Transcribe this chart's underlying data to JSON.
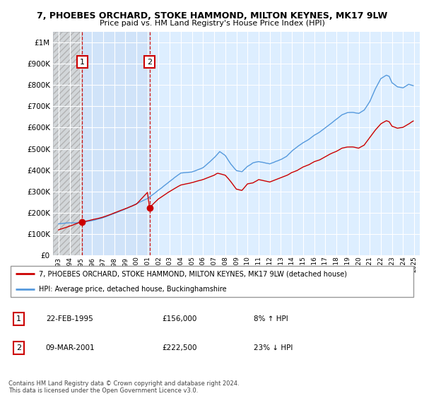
{
  "title": "7, PHOEBES ORCHARD, STOKE HAMMOND, MILTON KEYNES, MK17 9LW",
  "subtitle": "Price paid vs. HM Land Registry's House Price Index (HPI)",
  "legend_line1": "7, PHOEBES ORCHARD, STOKE HAMMOND, MILTON KEYNES, MK17 9LW (detached house)",
  "legend_line2": "HPI: Average price, detached house, Buckinghamshire",
  "annotation1_label": "1",
  "annotation1_date": "22-FEB-1995",
  "annotation1_price": "£156,000",
  "annotation1_hpi": "8% ↑ HPI",
  "annotation2_label": "2",
  "annotation2_date": "09-MAR-2001",
  "annotation2_price": "£222,500",
  "annotation2_hpi": "23% ↓ HPI",
  "copyright": "Contains HM Land Registry data © Crown copyright and database right 2024.\nThis data is licensed under the Open Government Licence v3.0.",
  "hpi_color": "#5599dd",
  "price_color": "#cc0000",
  "annotation_color": "#cc0000",
  "background_color": "#ddeeff",
  "hatch_bg": "#c8c8c8",
  "sale_shade_color": "#c8ddf5",
  "grid_color": "#ffffff",
  "ylim": [
    0,
    1050000
  ],
  "yticks": [
    0,
    100000,
    200000,
    300000,
    400000,
    500000,
    600000,
    700000,
    800000,
    900000,
    1000000
  ],
  "sale1_x": 1995.12,
  "sale1_y": 156000,
  "sale2_x": 2001.18,
  "sale2_y": 222500,
  "xlim_left": 1992.5,
  "xlim_right": 2025.5,
  "xtick_years": [
    1993,
    1994,
    1995,
    1996,
    1997,
    1998,
    1999,
    2000,
    2001,
    2002,
    2003,
    2004,
    2005,
    2006,
    2007,
    2008,
    2009,
    2010,
    2011,
    2012,
    2013,
    2014,
    2015,
    2016,
    2017,
    2018,
    2019,
    2020,
    2021,
    2022,
    2023,
    2024,
    2025
  ]
}
